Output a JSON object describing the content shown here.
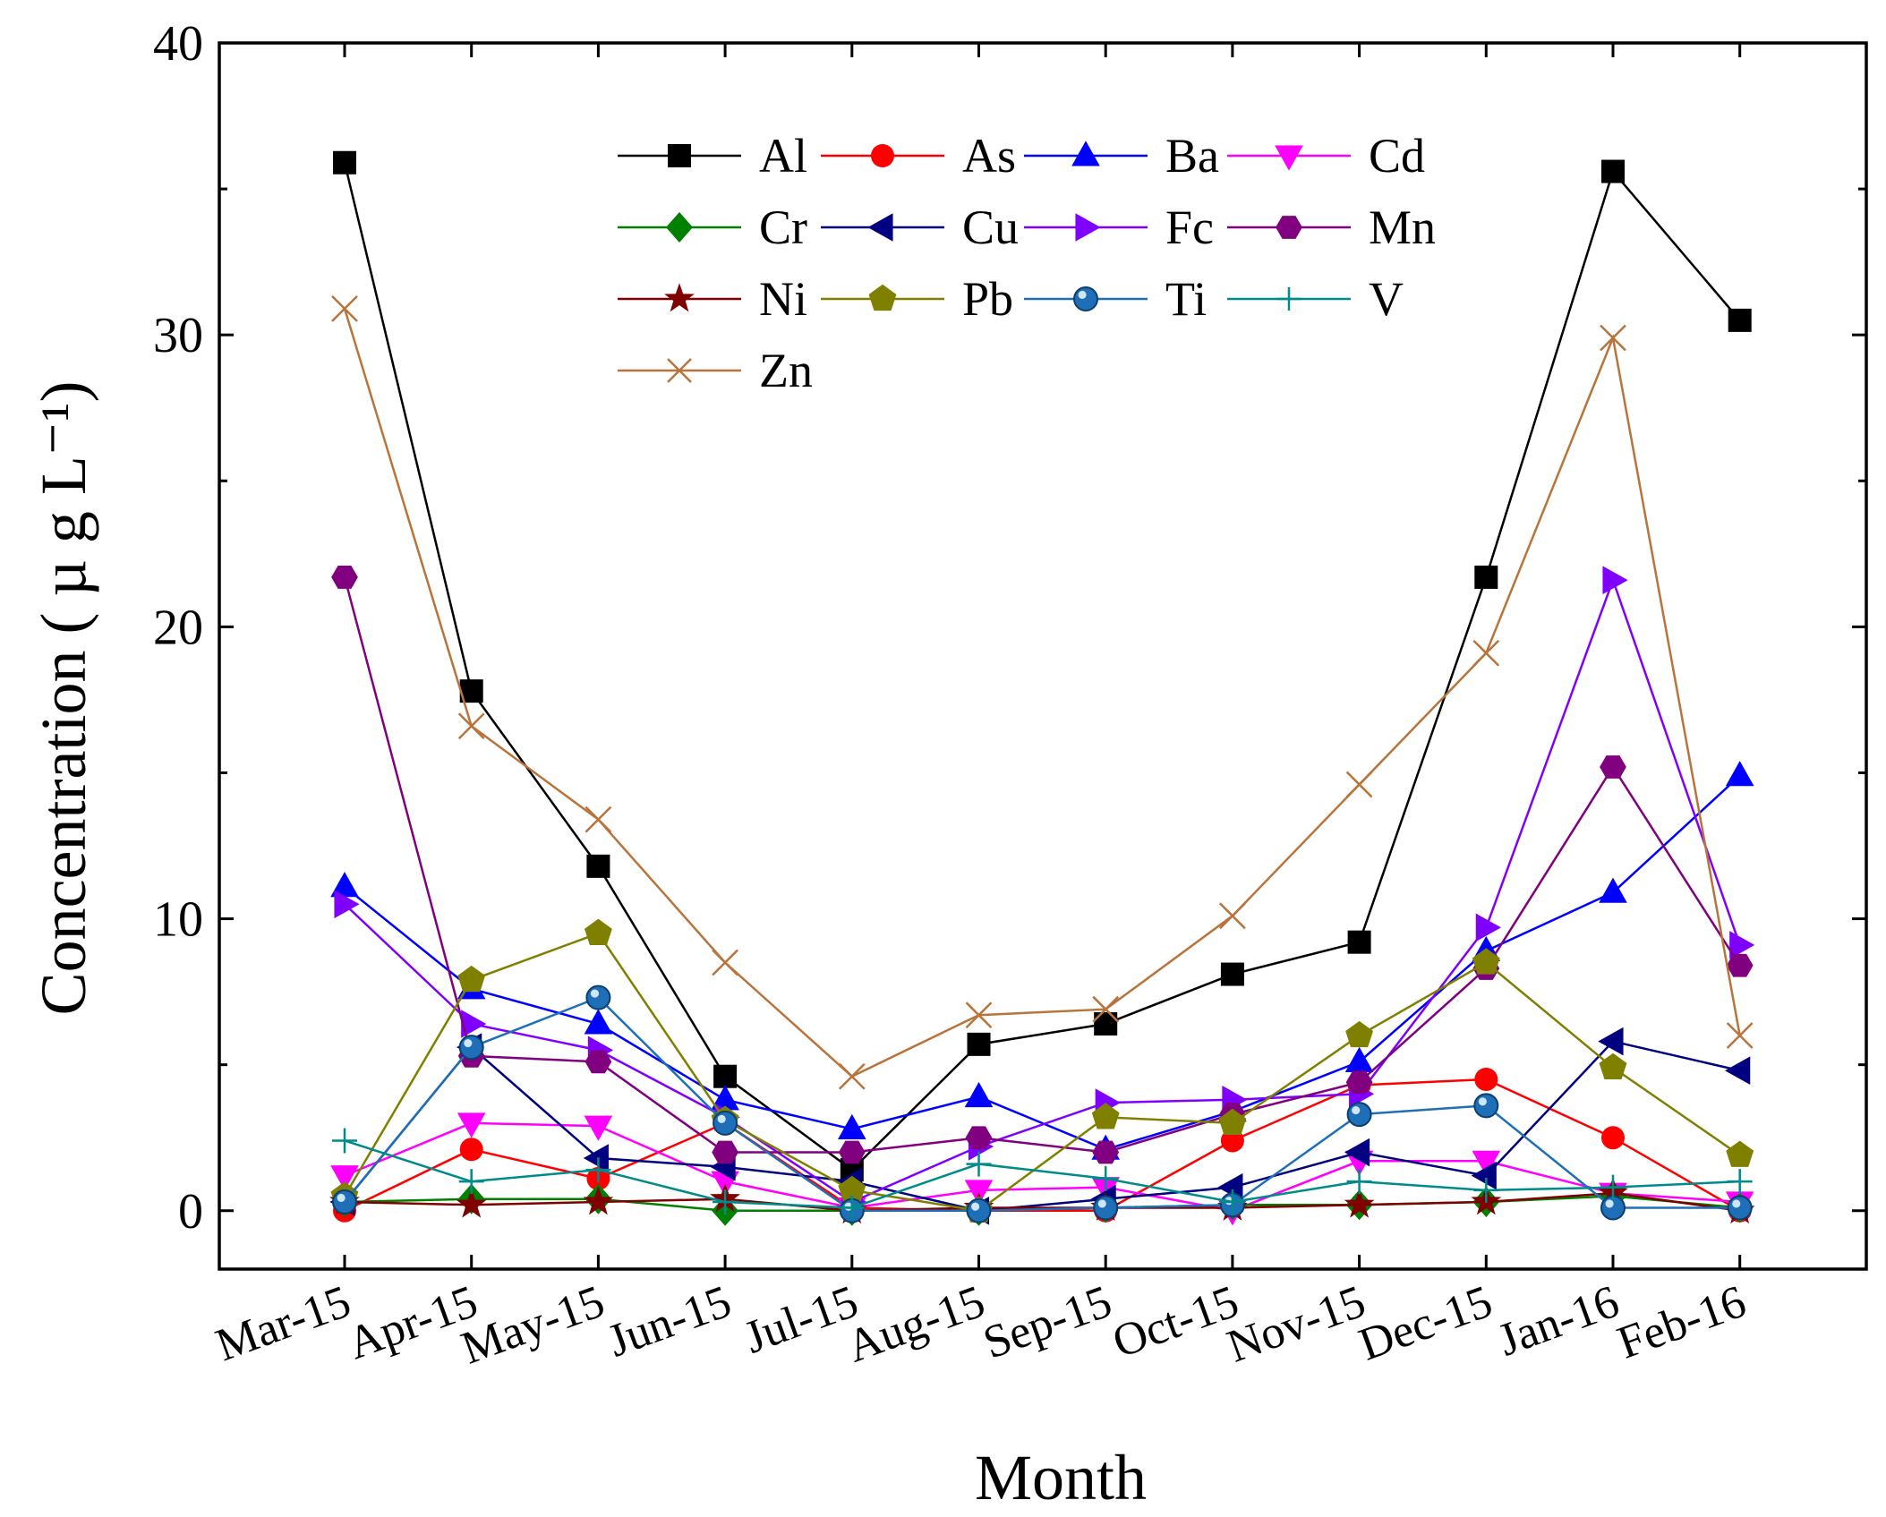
{
  "chart_data": {
    "type": "line",
    "title": "",
    "xlabel": "Month",
    "ylabel": "Concentration ( µ g L⁻¹)",
    "ylim": [
      -2,
      40
    ],
    "yticks": [
      0,
      10,
      20,
      30,
      40
    ],
    "grid": false,
    "legend_position": "top-center",
    "categories": [
      "Mar-15",
      "Apr-15",
      "May-15",
      "Jun-15",
      "Jul-15",
      "Aug-15",
      "Sep-15",
      "Oct-15",
      "Nov-15",
      "Dec-15",
      "Jan-16",
      "Feb-16"
    ],
    "series": [
      {
        "name": "Al",
        "color": "#000000",
        "marker": "square",
        "values": [
          35.9,
          17.8,
          11.8,
          4.6,
          1.4,
          5.7,
          6.4,
          8.1,
          9.2,
          21.7,
          35.6,
          30.5
        ]
      },
      {
        "name": "As",
        "color": "#ff0000",
        "marker": "circle",
        "values": [
          0.0,
          2.1,
          1.1,
          3.0,
          0.1,
          0.0,
          0.0,
          2.4,
          4.3,
          4.5,
          2.5,
          0.0
        ]
      },
      {
        "name": "Ba",
        "color": "#0000ff",
        "marker": "triangle-up",
        "values": [
          11.1,
          7.6,
          6.4,
          3.8,
          2.8,
          3.9,
          2.1,
          3.4,
          5.1,
          8.9,
          10.9,
          14.9
        ]
      },
      {
        "name": "Cd",
        "color": "#ff00ff",
        "marker": "triangle-down",
        "values": [
          1.2,
          3.0,
          2.9,
          1.0,
          0.1,
          0.7,
          0.8,
          0.0,
          1.7,
          1.7,
          0.6,
          0.3
        ]
      },
      {
        "name": "Cr",
        "color": "#008000",
        "marker": "diamond",
        "values": [
          0.3,
          0.4,
          0.4,
          0.0,
          0.0,
          0.0,
          0.1,
          0.2,
          0.2,
          0.3,
          0.5,
          0.1
        ]
      },
      {
        "name": "Cu",
        "color": "#000080",
        "marker": "triangle-left",
        "values": [
          0.3,
          5.6,
          1.8,
          1.5,
          1.0,
          0.0,
          0.4,
          0.8,
          2.0,
          1.2,
          5.8,
          4.8
        ]
      },
      {
        "name": "Fc",
        "color": "#8000ff",
        "marker": "triangle-right",
        "values": [
          10.5,
          6.4,
          5.5,
          3.2,
          0.3,
          2.2,
          3.7,
          3.8,
          4.0,
          9.7,
          21.6,
          9.1
        ]
      },
      {
        "name": "Mn",
        "color": "#800080",
        "marker": "hexagon",
        "values": [
          21.7,
          5.3,
          5.1,
          2.0,
          2.0,
          2.5,
          2.0,
          3.3,
          4.4,
          8.3,
          15.2,
          8.4
        ]
      },
      {
        "name": "Ni",
        "color": "#800000",
        "marker": "star",
        "values": [
          0.3,
          0.2,
          0.3,
          0.4,
          0.0,
          0.1,
          0.1,
          0.1,
          0.2,
          0.3,
          0.6,
          0.0
        ]
      },
      {
        "name": "Pb",
        "color": "#808000",
        "marker": "pentagon",
        "values": [
          0.5,
          7.9,
          9.5,
          3.1,
          0.7,
          0.0,
          3.2,
          3.0,
          6.0,
          8.5,
          4.9,
          1.9
        ]
      },
      {
        "name": "Ti",
        "color": "#1e6fb8",
        "marker": "ball",
        "values": [
          0.3,
          5.6,
          7.3,
          3.0,
          0.0,
          0.0,
          0.1,
          0.2,
          3.3,
          3.6,
          0.1,
          0.1
        ]
      },
      {
        "name": "V",
        "color": "#008b8b",
        "marker": "plus",
        "values": [
          2.4,
          1.0,
          1.4,
          0.3,
          0.1,
          1.6,
          1.1,
          0.3,
          1.0,
          0.7,
          0.8,
          1.0
        ]
      },
      {
        "name": "Zn",
        "color": "#b8743b",
        "marker": "x",
        "values": [
          30.9,
          16.6,
          13.4,
          8.5,
          4.6,
          6.7,
          6.9,
          10.1,
          14.6,
          19.1,
          29.9,
          6.0
        ]
      }
    ]
  }
}
